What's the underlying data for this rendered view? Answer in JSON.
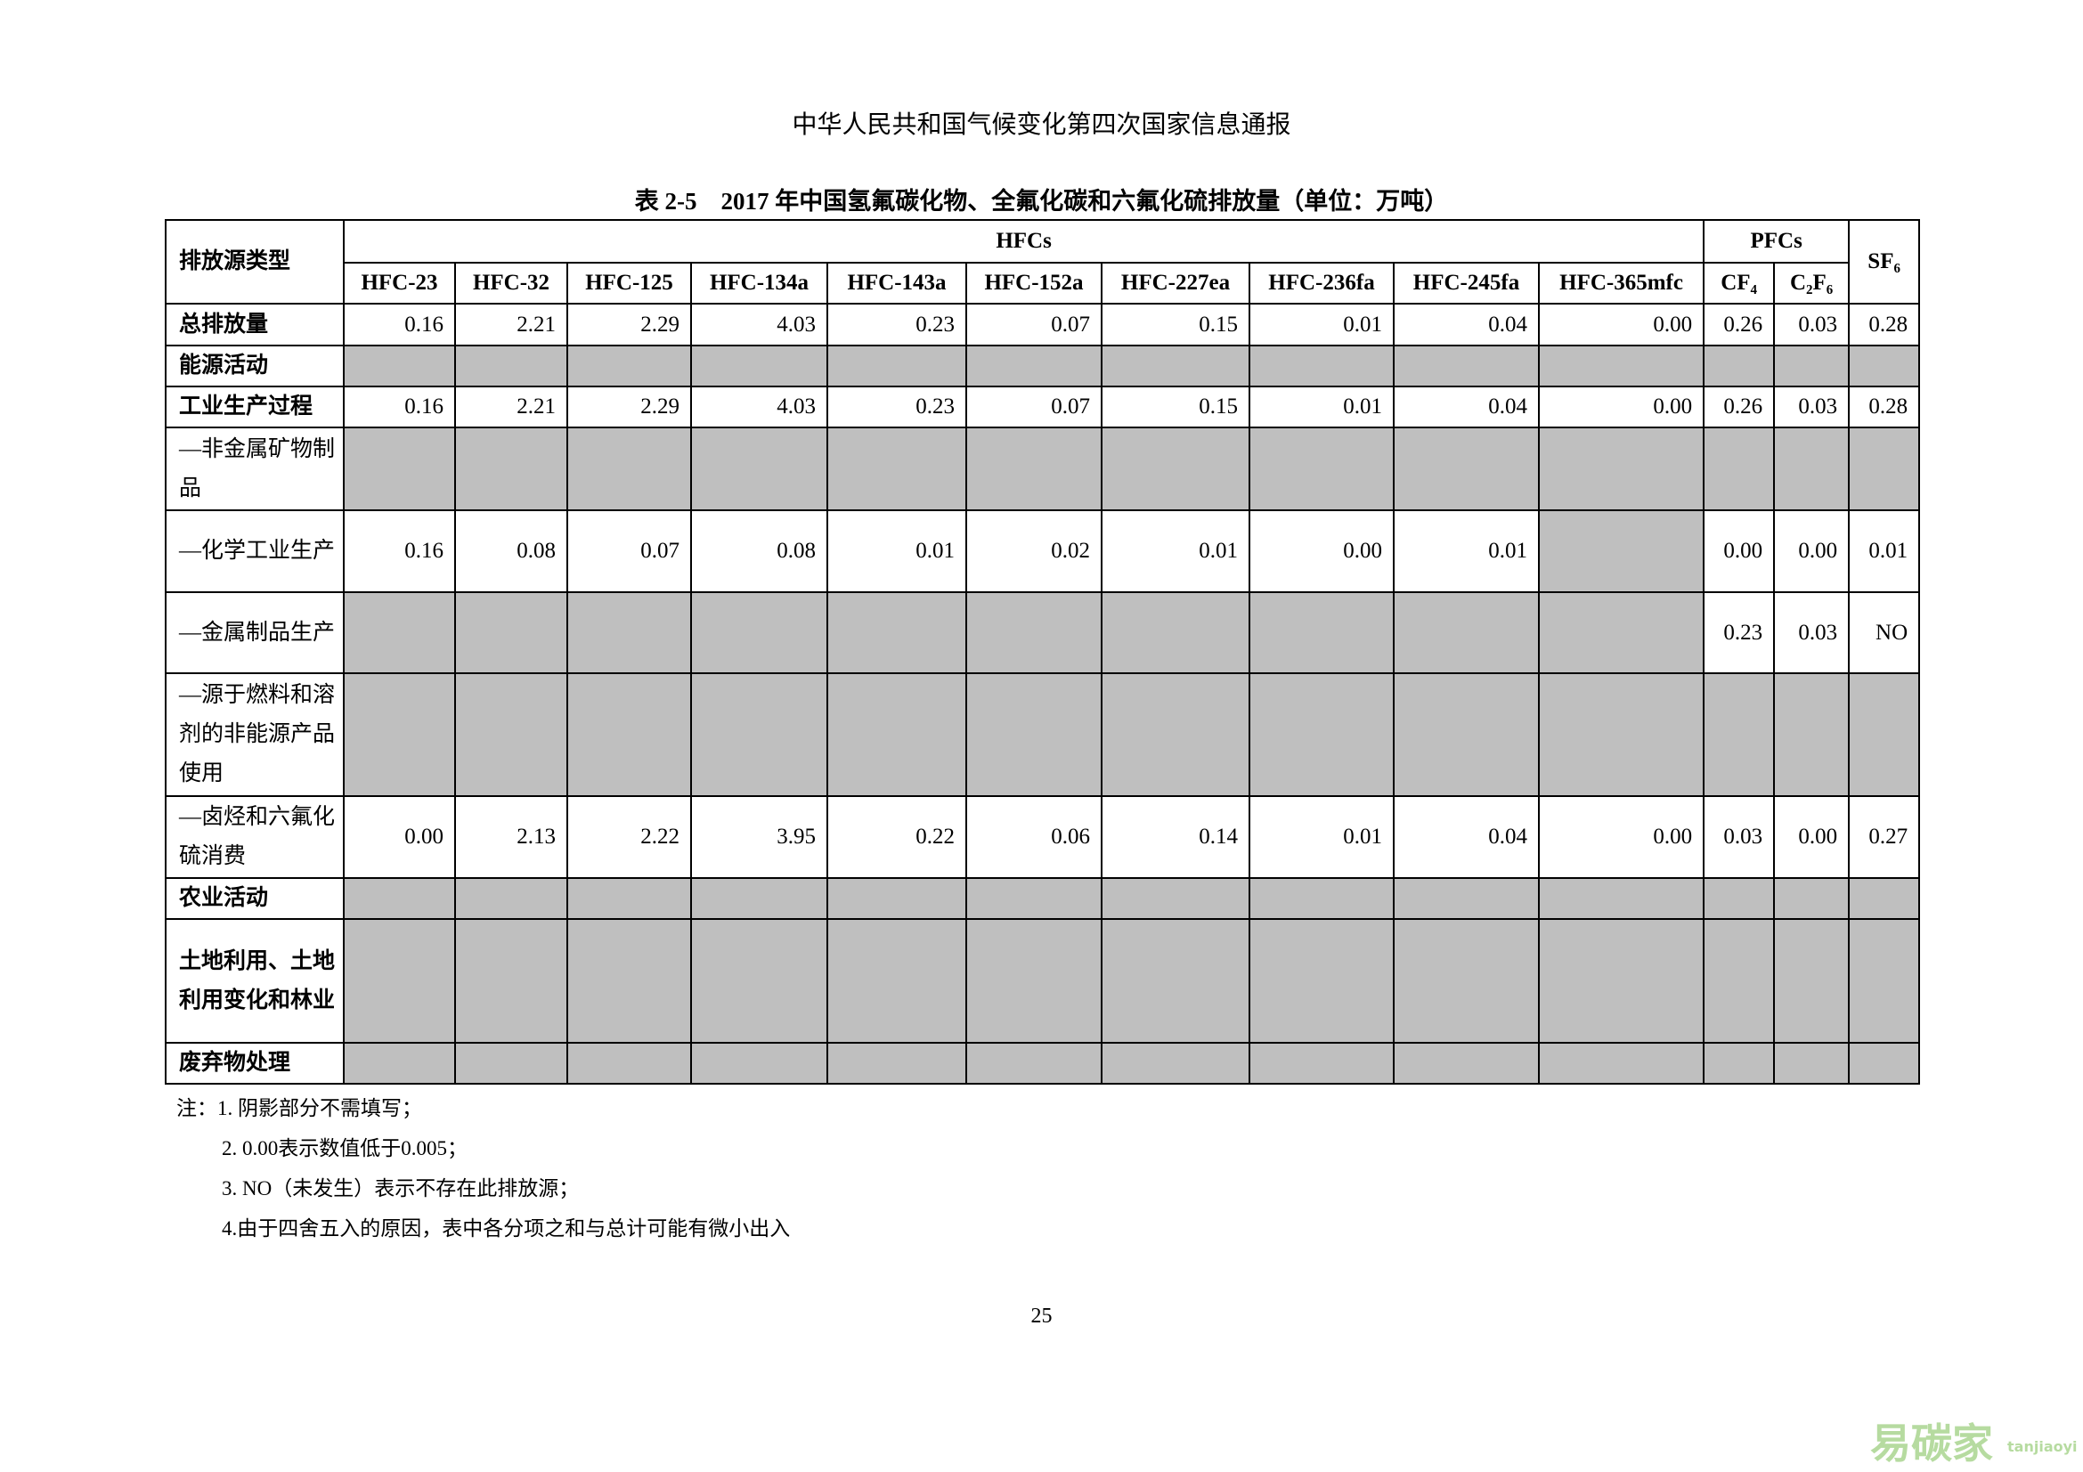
{
  "header": "中华人民共和国气候变化第四次国家信息通报",
  "table": {
    "title": "表 2-5　2017 年中国氢氟碳化物、全氟化碳和六氟化硫排放量（单位：万吨）",
    "row_header": "排放源类型",
    "groups": [
      "HFCs",
      "PFCs"
    ],
    "sf6": "SF₆",
    "columns": [
      "HFC-23",
      "HFC-32",
      "HFC-125",
      "HFC-134a",
      "HFC-143a",
      "HFC-152a",
      "HFC-227ea",
      "HFC-236fa",
      "HFC-245fa",
      "HFC-365mfc",
      "CF₄",
      "C₂F₆"
    ],
    "rows": [
      {
        "label": "总排放量",
        "values": [
          "0.16",
          "2.21",
          "2.29",
          "4.03",
          "0.23",
          "0.07",
          "0.15",
          "0.01",
          "0.04",
          "0.00",
          "0.26",
          "0.03",
          "0.28"
        ]
      },
      {
        "label": "能源活动",
        "values": [
          null,
          null,
          null,
          null,
          null,
          null,
          null,
          null,
          null,
          null,
          null,
          null,
          null
        ]
      },
      {
        "label": "工业生产过程",
        "values": [
          "0.16",
          "2.21",
          "2.29",
          "4.03",
          "0.23",
          "0.07",
          "0.15",
          "0.01",
          "0.04",
          "0.00",
          "0.26",
          "0.03",
          "0.28"
        ]
      },
      {
        "label": "—非金属矿物制品",
        "values": [
          null,
          null,
          null,
          null,
          null,
          null,
          null,
          null,
          null,
          null,
          null,
          null,
          null
        ]
      },
      {
        "label": "—化学工业生产",
        "values": [
          "0.16",
          "0.08",
          "0.07",
          "0.08",
          "0.01",
          "0.02",
          "0.01",
          "0.00",
          "0.01",
          null,
          "0.00",
          "0.00",
          "0.01"
        ]
      },
      {
        "label": "—金属制品生产",
        "values": [
          null,
          null,
          null,
          null,
          null,
          null,
          null,
          null,
          null,
          null,
          "0.23",
          "0.03",
          "NO"
        ]
      },
      {
        "label": "—源于燃料和溶剂的非能源产品使用",
        "values": [
          null,
          null,
          null,
          null,
          null,
          null,
          null,
          null,
          null,
          null,
          null,
          null,
          null
        ]
      },
      {
        "label": "—卤烃和六氟化硫消费",
        "values": [
          "0.00",
          "2.13",
          "2.22",
          "3.95",
          "0.22",
          "0.06",
          "0.14",
          "0.01",
          "0.04",
          "0.00",
          "0.03",
          "0.00",
          "0.27"
        ]
      },
      {
        "label": "农业活动",
        "values": [
          null,
          null,
          null,
          null,
          null,
          null,
          null,
          null,
          null,
          null,
          null,
          null,
          null
        ]
      },
      {
        "label": "土地利用、土地利用变化和林业",
        "values": [
          null,
          null,
          null,
          null,
          null,
          null,
          null,
          null,
          null,
          null,
          null,
          null,
          null
        ]
      },
      {
        "label": "废弃物处理",
        "values": [
          null,
          null,
          null,
          null,
          null,
          null,
          null,
          null,
          null,
          null,
          null,
          null,
          null
        ]
      }
    ]
  },
  "notes": [
    "注：1. 阴影部分不需填写；",
    "2. 0.00表示数值低于0.005；",
    "3. NO（未发生）表示不存在此排放源；",
    "4.由于四舍五入的原因，表中各分项之和与总计可能有微小出入"
  ],
  "page_number": "25",
  "watermark": {
    "brand": "易碳家",
    "site": "tanjiaoyi"
  }
}
